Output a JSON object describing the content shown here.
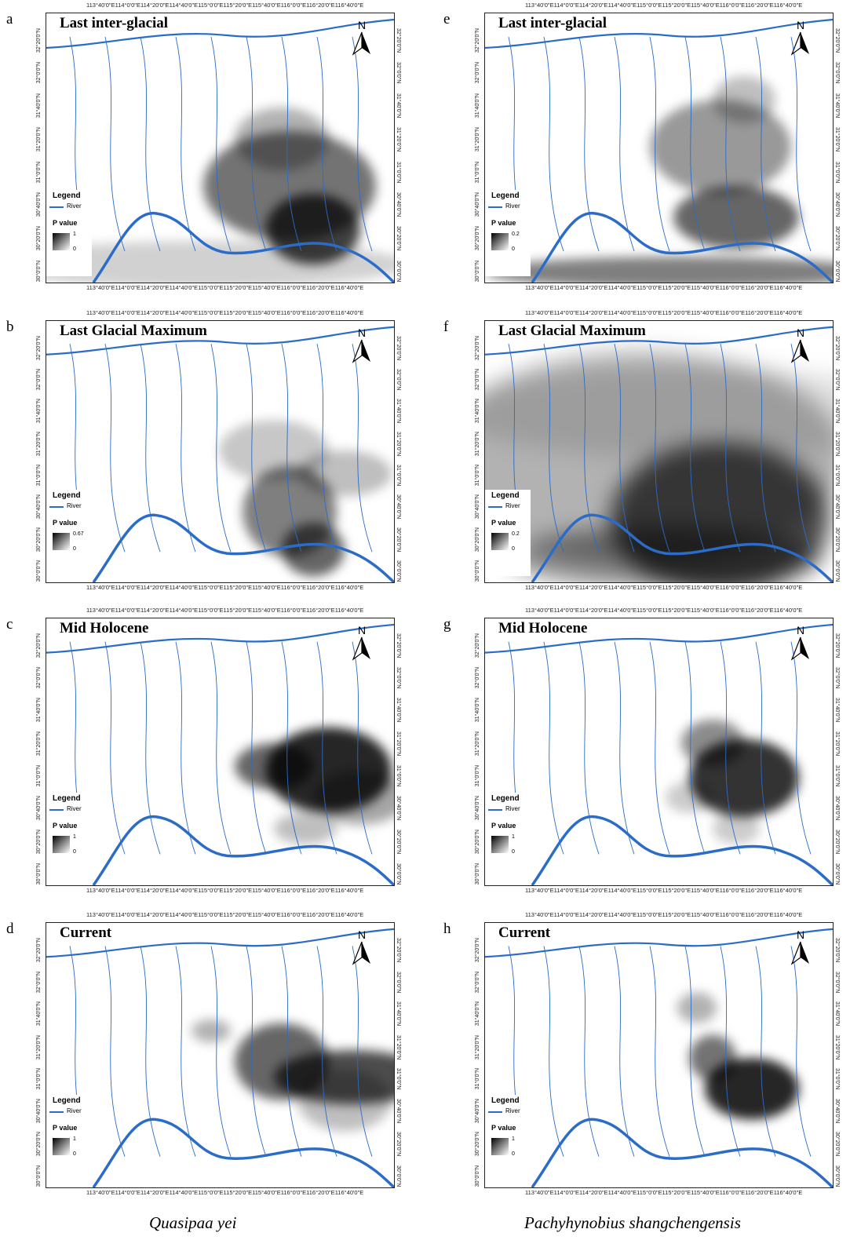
{
  "panels": [
    {
      "letter": "a",
      "title": "Last inter-glacial",
      "legend_max": "1",
      "legend_min": "0"
    },
    {
      "letter": "b",
      "title": "Last Glacial Maximum",
      "legend_max": "0.67",
      "legend_min": "0"
    },
    {
      "letter": "c",
      "title": "Mid Holocene",
      "legend_max": "1",
      "legend_min": "0"
    },
    {
      "letter": "d",
      "title": "Current",
      "legend_max": "1",
      "legend_min": "0"
    },
    {
      "letter": "e",
      "title": "Last inter-glacial",
      "legend_max": "0.2",
      "legend_min": "0"
    },
    {
      "letter": "f",
      "title": "Last Glacial Maximum",
      "legend_max": "0.2",
      "legend_min": "0"
    },
    {
      "letter": "g",
      "title": "Mid Holocene",
      "legend_max": "1",
      "legend_min": "0"
    },
    {
      "letter": "h",
      "title": "Current",
      "legend_max": "1",
      "legend_min": "0"
    }
  ],
  "legend": {
    "title": "Legend",
    "river_label": "River",
    "pvalue_label": "P value"
  },
  "north_label": "N",
  "lon_labels": [
    "113°40'0\"E",
    "114°0'0\"E",
    "114°20'0\"E",
    "114°40'0\"E",
    "115°0'0\"E",
    "115°20'0\"E",
    "115°40'0\"E",
    "116°0'0\"E",
    "116°20'0\"E",
    "116°40'0\"E"
  ],
  "lat_labels": [
    "32°20'0\"N",
    "32°0'0\"N",
    "31°40'0\"N",
    "31°20'0\"N",
    "31°0'0\"N",
    "30°40'0\"N",
    "30°20'0\"N",
    "30°0'0\"N"
  ],
  "captions": {
    "left": "Quasipaa yei",
    "right": "Pachyhynobius shangchengensis"
  },
  "colors": {
    "river": "#2a6cc8",
    "frame": "#222222"
  }
}
